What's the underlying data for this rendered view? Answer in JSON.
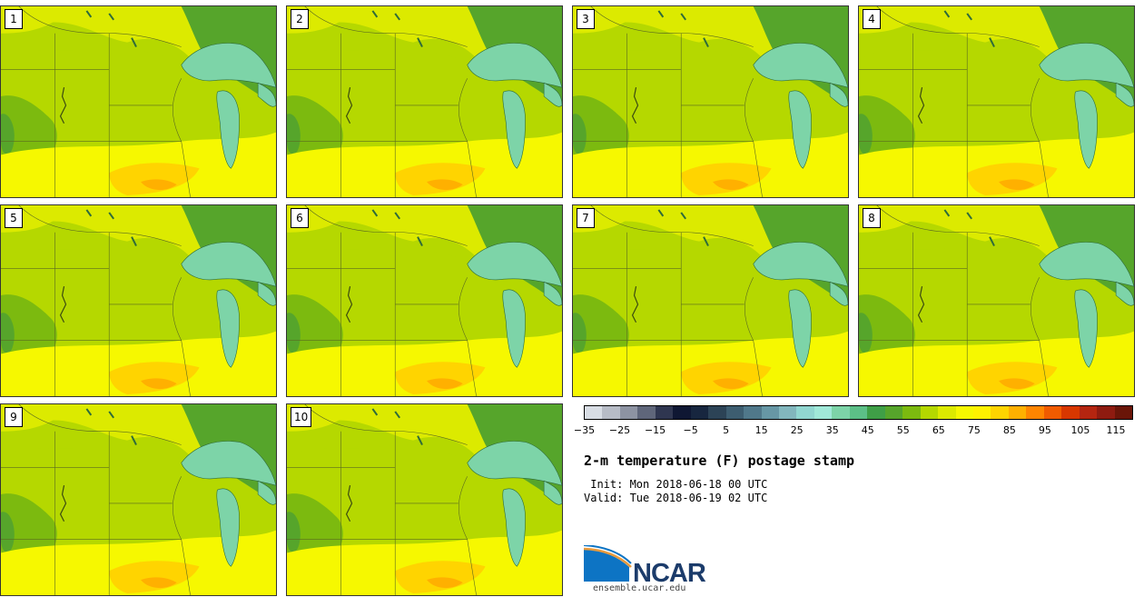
{
  "panels": [
    {
      "label": "1"
    },
    {
      "label": "2"
    },
    {
      "label": "3"
    },
    {
      "label": "4"
    },
    {
      "label": "5"
    },
    {
      "label": "6"
    },
    {
      "label": "7"
    },
    {
      "label": "8"
    },
    {
      "label": "9"
    },
    {
      "label": "10"
    }
  ],
  "colorbar": {
    "colors": [
      "#d8dde4",
      "#b7bcc6",
      "#8d93a2",
      "#5f667a",
      "#2f3650",
      "#0f1733",
      "#17263f",
      "#2c4356",
      "#3d5d70",
      "#50788a",
      "#6797a5",
      "#82b6bd",
      "#91d6d0",
      "#a0e8d8",
      "#7dd4a8",
      "#5cbf87",
      "#3f9f47",
      "#56a52b",
      "#7cba0f",
      "#b5d800",
      "#dcea00",
      "#f6f800",
      "#fff200",
      "#ffd400",
      "#ffb000",
      "#ff8500",
      "#f05b00",
      "#d83700",
      "#b42510",
      "#8e1b10",
      "#6a1508"
    ],
    "ticks": [
      "−35",
      "−25",
      "−15",
      "−5",
      "5",
      "15",
      "25",
      "35",
      "45",
      "55",
      "65",
      "75",
      "85",
      "95",
      "105",
      "115"
    ]
  },
  "title": "2-m temperature (F) postage stamp",
  "init_line": " Init: Mon 2018-06-18 00 UTC",
  "valid_line": "Valid: Tue 2018-06-19 02 UTC",
  "logo": {
    "text": "NCAR",
    "blue": "#0d74c4",
    "orange": "#e89a3c"
  },
  "url": "ensemble.ucar.edu"
}
